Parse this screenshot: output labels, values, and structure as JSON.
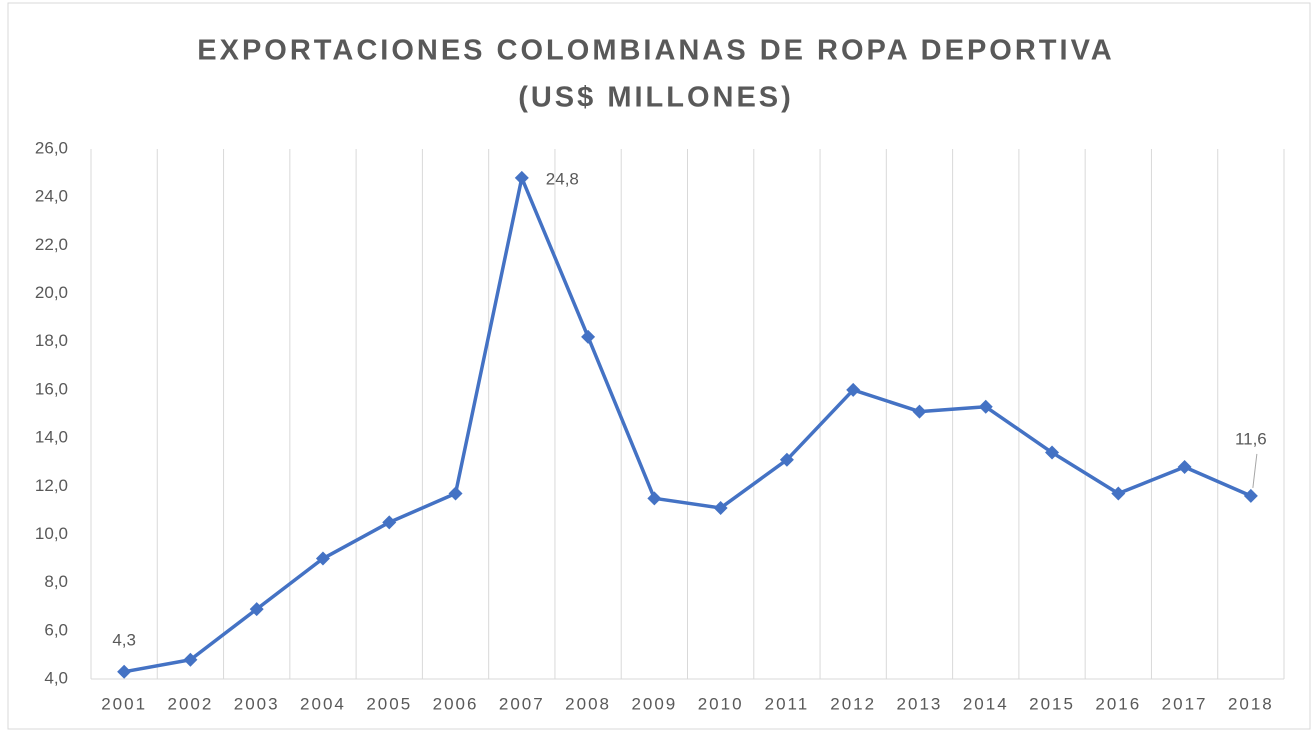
{
  "chart_data": {
    "type": "line",
    "title": [
      "EXPORTACIONES COLOMBIANAS DE ROPA DEPORTIVA",
      "(US$ MILLONES)"
    ],
    "categories": [
      "2001",
      "2002",
      "2003",
      "2004",
      "2005",
      "2006",
      "2007",
      "2008",
      "2009",
      "2010",
      "2011",
      "2012",
      "2013",
      "2014",
      "2015",
      "2016",
      "2017",
      "2018"
    ],
    "series": [
      {
        "name": null,
        "color": "#4472c4",
        "values": [
          4.3,
          4.8,
          6.9,
          9.0,
          10.5,
          11.7,
          24.8,
          18.2,
          11.5,
          11.1,
          13.1,
          16.0,
          15.1,
          15.3,
          13.4,
          11.7,
          12.8,
          11.6
        ],
        "value_labels": [
          "4,3",
          null,
          null,
          null,
          null,
          null,
          "24,8",
          null,
          null,
          null,
          null,
          null,
          null,
          null,
          null,
          null,
          null,
          "11,6"
        ]
      }
    ],
    "ylim": [
      4,
      26
    ],
    "yticks": [
      {
        "value": 4,
        "label": "4,0"
      },
      {
        "value": 6,
        "label": "6,0"
      },
      {
        "value": 8,
        "label": "8,0"
      },
      {
        "value": 10,
        "label": "10,0"
      },
      {
        "value": 12,
        "label": "12,0"
      },
      {
        "value": 14,
        "label": "14,0"
      },
      {
        "value": 16,
        "label": "16,0"
      },
      {
        "value": 18,
        "label": "18,0"
      },
      {
        "value": 20,
        "label": "20,0"
      },
      {
        "value": 22,
        "label": "22,0"
      },
      {
        "value": 24,
        "label": "24,0"
      },
      {
        "value": 26,
        "label": "26,0"
      }
    ],
    "xgrid": true
  }
}
